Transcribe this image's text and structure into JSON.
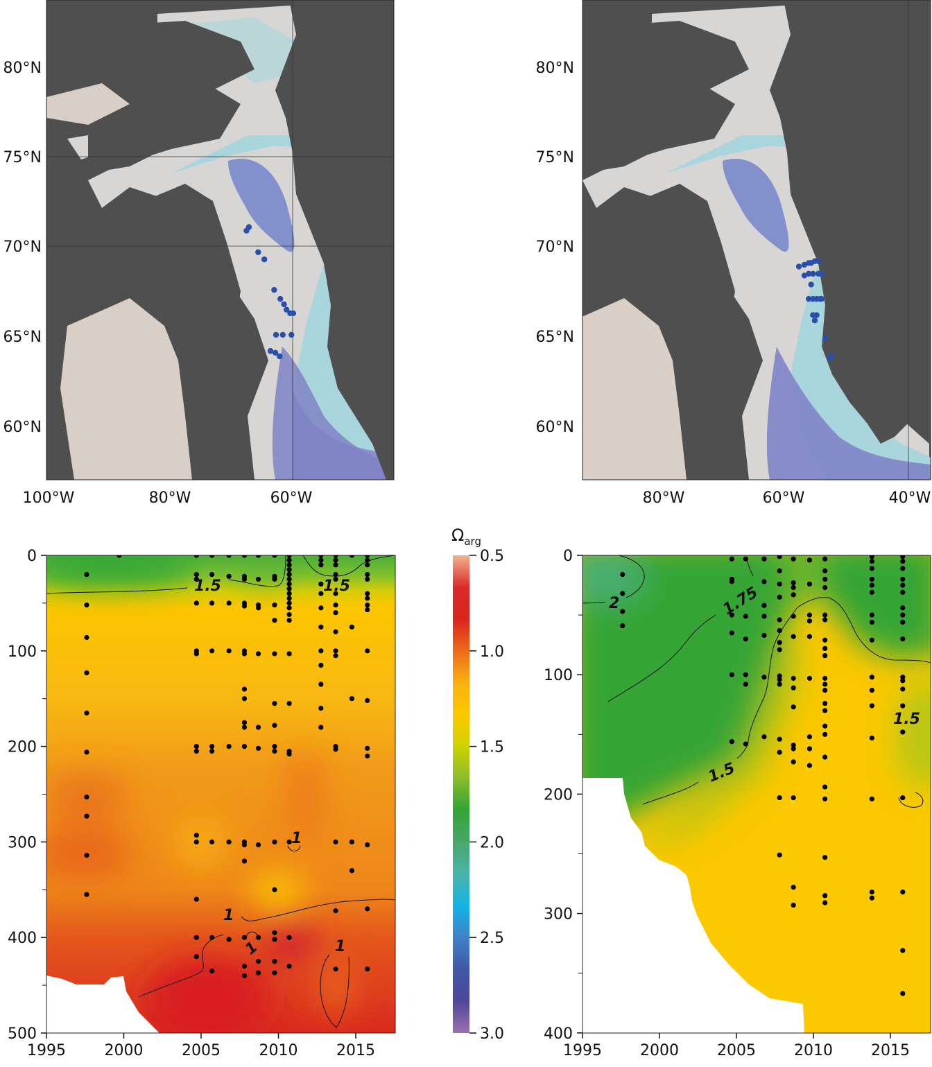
{
  "maps": [
    {
      "lon_ticks": [
        "100°W",
        "80°W",
        "60°W"
      ],
      "lat_ticks": [
        "80°N",
        "75°N",
        "70°N",
        "65°N",
        "60°N"
      ],
      "station_color": "#2a4fa8",
      "stations": [
        [
          -67.5,
          70.9
        ],
        [
          -67.1,
          71.1
        ],
        [
          -65.6,
          69.7
        ],
        [
          -64.6,
          69.3
        ],
        [
          -63.0,
          67.6
        ],
        [
          -62.0,
          67.1
        ],
        [
          -61.4,
          66.8
        ],
        [
          -61.0,
          66.5
        ],
        [
          -60.4,
          66.3
        ],
        [
          -59.9,
          66.3
        ],
        [
          -62.7,
          65.1
        ],
        [
          -61.6,
          65.1
        ],
        [
          -60.2,
          65.1
        ],
        [
          -63.6,
          64.2
        ],
        [
          -62.8,
          64.1
        ],
        [
          -62.1,
          63.9
        ]
      ]
    },
    {
      "lon_ticks": [
        "80°W",
        "60°W",
        "40°W"
      ],
      "lat_ticks": [
        "80°N",
        "75°N",
        "70°N",
        "65°N",
        "60°N"
      ],
      "station_color": "#2a4fa8",
      "stations": [
        [
          -57.9,
          68.9
        ],
        [
          -57.0,
          69.0
        ],
        [
          -56.3,
          69.1
        ],
        [
          -55.9,
          69.1
        ],
        [
          -55.3,
          69.2
        ],
        [
          -54.7,
          69.2
        ],
        [
          -57.0,
          68.4
        ],
        [
          -56.3,
          68.5
        ],
        [
          -55.6,
          68.5
        ],
        [
          -54.7,
          68.5
        ],
        [
          -54.2,
          68.5
        ],
        [
          -55.9,
          67.9
        ],
        [
          -56.3,
          67.1
        ],
        [
          -55.6,
          67.1
        ],
        [
          -55.0,
          67.1
        ],
        [
          -54.4,
          67.1
        ],
        [
          -54.2,
          67.1
        ],
        [
          -55.6,
          66.2
        ],
        [
          -55.0,
          66.2
        ],
        [
          -55.3,
          65.9
        ],
        [
          -53.6,
          64.9
        ],
        [
          -52.8,
          63.8
        ],
        [
          -52.6,
          63.9
        ]
      ]
    }
  ],
  "colorbar": {
    "label": "Ω",
    "label_sub": "arg",
    "ticks": [
      "0.5",
      "1.0",
      "1.5",
      "2.0",
      "2.5",
      "3.0"
    ],
    "range": [
      0.5,
      3.0
    ],
    "colors": [
      "#f4b090",
      "#d92b2b",
      "#d8241c",
      "#ee6b1a",
      "#fab012",
      "#fdc800",
      "#cdd200",
      "#8abc2a",
      "#33a534",
      "#4aa66a",
      "#4ab4a8",
      "#14b4e6",
      "#3f82c8",
      "#4156a8",
      "#4f479a",
      "#9a70b0"
    ]
  },
  "chart_data": [
    {
      "type": "heatmap",
      "title": "",
      "xlabel": "",
      "ylabel": "",
      "xlim": [
        1995,
        2017.5
      ],
      "ylim": [
        500,
        0
      ],
      "x_ticks": [
        "1995",
        "2000",
        "2005",
        "2010",
        "2015"
      ],
      "y_ticks": [
        "0",
        "100",
        "200",
        "300",
        "400",
        "500"
      ],
      "variable": "Ω_arg",
      "contour_labels": [
        "1.5",
        "1.5",
        "1",
        "1",
        "1",
        "1"
      ],
      "samples": [
        {
          "year": 1997.6,
          "depths": [
            20,
            52,
            86,
            123,
            165,
            206,
            253,
            273,
            314,
            355
          ]
        },
        {
          "year": 1999.7,
          "depths": [
            0
          ]
        },
        {
          "year": 2004.7,
          "depths": [
            0,
            20,
            25,
            50,
            100,
            103,
            200,
            205,
            293,
            300,
            360,
            400,
            420
          ]
        },
        {
          "year": 2005.7,
          "depths": [
            0,
            20,
            50,
            100,
            200,
            205,
            300,
            400,
            435
          ]
        },
        {
          "year": 2006.8,
          "depths": [
            0,
            22,
            50,
            100,
            200,
            300,
            402
          ]
        },
        {
          "year": 2007.8,
          "depths": [
            0,
            22,
            25,
            50,
            53,
            100,
            103,
            140,
            150,
            175,
            180,
            200,
            300,
            303,
            320,
            400,
            430,
            440
          ]
        },
        {
          "year": 2008.7,
          "depths": [
            0,
            25,
            52,
            55,
            103,
            180,
            202,
            303,
            400,
            425,
            437
          ]
        },
        {
          "year": 2009.75,
          "depths": [
            0,
            22,
            25,
            52,
            68,
            103,
            155,
            178,
            200,
            205,
            300,
            350,
            395,
            402,
            425,
            437
          ]
        },
        {
          "year": 2010.7,
          "depths": [
            0,
            5,
            10,
            15,
            20,
            25,
            30,
            35,
            40,
            45,
            50,
            55,
            62,
            68,
            103,
            155,
            205,
            208,
            300,
            400,
            430
          ]
        },
        {
          "year": 2012.75,
          "depths": [
            0,
            5,
            10,
            30,
            40,
            55,
            75,
            100,
            115,
            135,
            160,
            180
          ]
        },
        {
          "year": 2013.7,
          "depths": [
            0,
            5,
            10,
            20,
            25,
            40,
            52,
            60,
            80,
            100,
            105,
            200,
            203,
            300,
            372,
            433
          ]
        },
        {
          "year": 2014.75,
          "depths": [
            0,
            75,
            150,
            300,
            330
          ]
        },
        {
          "year": 2015.75,
          "depths": [
            0,
            5,
            10,
            20,
            25,
            40,
            45,
            52,
            57,
            100,
            152,
            202,
            210,
            303,
            370,
            433
          ]
        }
      ]
    },
    {
      "type": "heatmap",
      "title": "",
      "xlabel": "",
      "ylabel": "",
      "xlim": [
        1995,
        2017.6
      ],
      "ylim": [
        400,
        0
      ],
      "x_ticks": [
        "1995",
        "2000",
        "2005",
        "2010",
        "2015"
      ],
      "y_ticks": [
        "0",
        "100",
        "200",
        "300",
        "400"
      ],
      "variable": "Ω_arg",
      "contour_labels": [
        "2",
        "1.75",
        "1.5",
        "1.5"
      ],
      "samples": [
        {
          "year": 1997.6,
          "depths": [
            16,
            32,
            47,
            59
          ]
        },
        {
          "year": 2004.7,
          "depths": [
            3,
            20,
            22,
            50,
            65,
            100,
            156
          ]
        },
        {
          "year": 2005.6,
          "depths": [
            3,
            51,
            70,
            100,
            108,
            158
          ]
        },
        {
          "year": 2006.8,
          "depths": [
            3,
            22,
            42,
            51,
            67,
            102,
            152
          ]
        },
        {
          "year": 2007.8,
          "depths": [
            1,
            13,
            24,
            35,
            54,
            63,
            73,
            79,
            101,
            104,
            108,
            154,
            165,
            203,
            251
          ]
        },
        {
          "year": 2008.7,
          "depths": [
            3,
            23,
            27,
            33,
            51,
            68,
            103,
            111,
            127,
            159,
            162,
            173,
            203,
            278,
            293
          ]
        },
        {
          "year": 2009.75,
          "depths": [
            4,
            24,
            50,
            55,
            68,
            103,
            152,
            162,
            176
          ]
        },
        {
          "year": 2010.75,
          "depths": [
            3,
            13,
            20,
            27,
            50,
            54,
            71,
            78,
            84,
            103,
            108,
            113,
            124,
            130,
            143,
            150,
            169,
            194,
            204,
            253,
            285,
            291
          ]
        },
        {
          "year": 2013.8,
          "depths": [
            1,
            5,
            11,
            20,
            25,
            31,
            50,
            56,
            71,
            102,
            113,
            126,
            153,
            204,
            282,
            287
          ]
        },
        {
          "year": 2015.8,
          "depths": [
            1,
            5,
            11,
            20,
            25,
            31,
            44,
            50,
            56,
            70,
            102,
            105,
            112,
            126,
            148,
            203,
            282,
            331,
            367
          ]
        }
      ]
    }
  ]
}
